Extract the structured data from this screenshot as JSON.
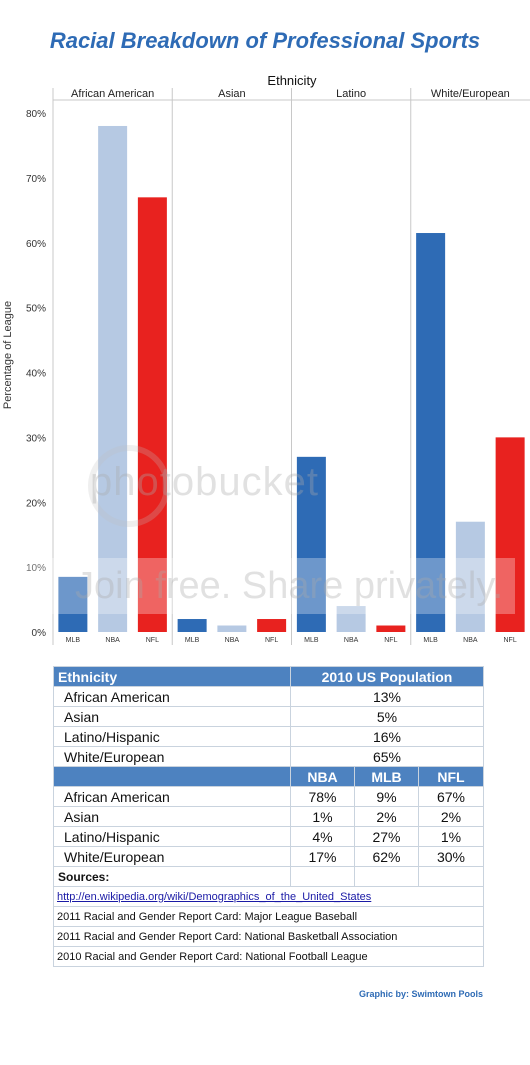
{
  "title": "Racial Breakdown of Professional Sports",
  "chart_data": {
    "type": "bar",
    "header": "Ethnicity",
    "ylabel": "Percentage of League",
    "ylim": [
      0,
      80
    ],
    "yticks": [
      "0%",
      "10%",
      "20%",
      "30%",
      "40%",
      "50%",
      "60%",
      "70%",
      "80%"
    ],
    "groups": [
      "African American",
      "Asian",
      "Latino",
      "White/European"
    ],
    "categories": [
      "MLB",
      "NBA",
      "NFL"
    ],
    "colors": {
      "MLB": "#2e6bb5",
      "NBA": "#b6c9e3",
      "NFL": "#e8221f"
    },
    "values": [
      [
        8.5,
        78,
        67
      ],
      [
        2,
        1,
        2
      ],
      [
        27,
        4,
        1
      ],
      [
        61.5,
        17,
        30
      ]
    ],
    "grid": false
  },
  "table_population": {
    "headers": [
      "Ethnicity",
      "2010 US Population"
    ],
    "rows": [
      [
        "African American",
        "13%"
      ],
      [
        "Asian",
        "5%"
      ],
      [
        "Latino/Hispanic",
        "16%"
      ],
      [
        "White/European",
        "65%"
      ]
    ]
  },
  "table_leagues": {
    "headers": [
      "",
      "NBA",
      "MLB",
      "NFL"
    ],
    "rows": [
      [
        "African American",
        "78%",
        "9%",
        "67%"
      ],
      [
        "Asian",
        "1%",
        "2%",
        "2%"
      ],
      [
        "Latino/Hispanic",
        "4%",
        "27%",
        "1%"
      ],
      [
        "White/European",
        "17%",
        "62%",
        "30%"
      ]
    ]
  },
  "sources": {
    "label": "Sources:",
    "link": "http://en.wikipedia.org/wiki/Demographics_of_the_United_States",
    "items": [
      "2011 Racial and Gender Report Card: Major League Baseball",
      "2011 Racial and Gender Report Card: National Basketball Association",
      "2010 Racial and Gender Report Card: National Football League"
    ]
  },
  "credit": "Graphic by: Swimtown Pools",
  "watermark": {
    "logo": "photobucket",
    "tagline": "Join free. Share privately."
  }
}
